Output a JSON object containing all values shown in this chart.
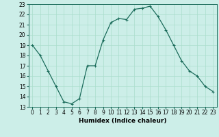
{
  "x": [
    0,
    1,
    2,
    3,
    4,
    5,
    6,
    7,
    8,
    9,
    10,
    11,
    12,
    13,
    14,
    15,
    16,
    17,
    18,
    19,
    20,
    21,
    22,
    23
  ],
  "y": [
    19,
    18,
    16.5,
    15,
    13.5,
    13.3,
    13.8,
    17,
    17,
    19.5,
    21.2,
    21.6,
    21.5,
    22.5,
    22.6,
    22.8,
    21.8,
    20.5,
    19,
    17.5,
    16.5,
    16,
    15,
    14.5
  ],
  "line_color": "#1a6b5a",
  "marker": "+",
  "marker_size": 3,
  "marker_linewidth": 0.8,
  "line_width": 0.9,
  "bg_color": "#cceee8",
  "grid_color": "#aaddcc",
  "xlabel": "Humidex (Indice chaleur)",
  "ylim": [
    13,
    23
  ],
  "xlim": [
    -0.5,
    23.5
  ],
  "yticks": [
    13,
    14,
    15,
    16,
    17,
    18,
    19,
    20,
    21,
    22,
    23
  ],
  "xticks": [
    0,
    1,
    2,
    3,
    4,
    5,
    6,
    7,
    8,
    9,
    10,
    11,
    12,
    13,
    14,
    15,
    16,
    17,
    18,
    19,
    20,
    21,
    22,
    23
  ],
  "label_fontsize": 6.5,
  "tick_fontsize": 5.5
}
